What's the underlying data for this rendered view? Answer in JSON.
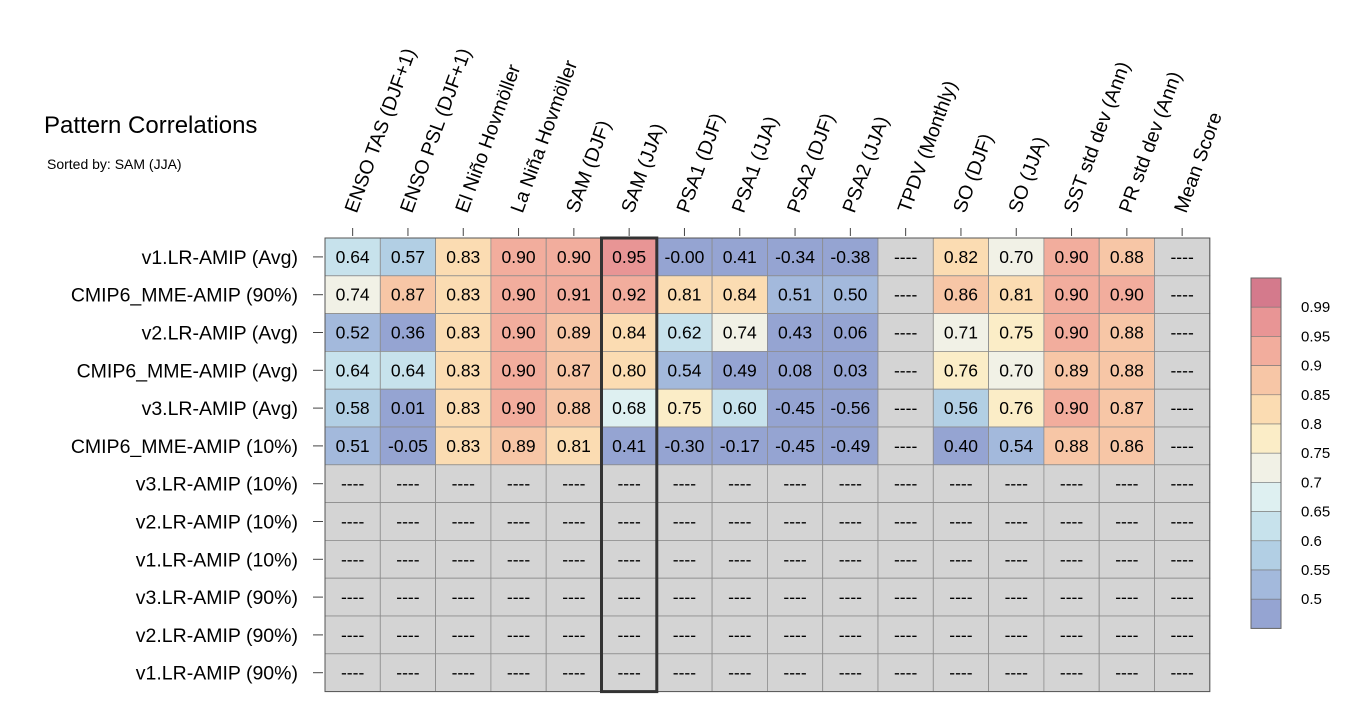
{
  "title": "Pattern Correlations",
  "subtitle": "Sorted by: SAM (JJA)",
  "chart_data": {
    "type": "heatmap",
    "columns": [
      "ENSO TAS (DJF+1)",
      "ENSO PSL (DJF+1)",
      "El Niño Hovmöller",
      "La Niña Hovmöller",
      "SAM (DJF)",
      "SAM (JJA)",
      "PSA1 (DJF)",
      "PSA1 (JJA)",
      "PSA2 (DJF)",
      "PSA2 (JJA)",
      "TPDV (Monthly)",
      "SO (DJF)",
      "SO (JJA)",
      "SST std dev (Ann)",
      "PR std dev (Ann)",
      "Mean Score"
    ],
    "rows": [
      "v1.LR-AMIP (Avg)",
      "CMIP6_MME-AMIP (90%)",
      "v2.LR-AMIP (Avg)",
      "CMIP6_MME-AMIP (Avg)",
      "v3.LR-AMIP (Avg)",
      "CMIP6_MME-AMIP (10%)",
      "v3.LR-AMIP (10%)",
      "v2.LR-AMIP (10%)",
      "v1.LR-AMIP (10%)",
      "v3.LR-AMIP (90%)",
      "v2.LR-AMIP (90%)",
      "v1.LR-AMIP (90%)"
    ],
    "values": [
      [
        "0.64",
        "0.57",
        "0.83",
        "0.90",
        "0.90",
        "0.95",
        "-0.00",
        "0.41",
        "-0.34",
        "-0.38",
        "----",
        "0.82",
        "0.70",
        "0.90",
        "0.88",
        "----"
      ],
      [
        "0.74",
        "0.87",
        "0.83",
        "0.90",
        "0.91",
        "0.92",
        "0.81",
        "0.84",
        "0.51",
        "0.50",
        "----",
        "0.86",
        "0.81",
        "0.90",
        "0.90",
        "----"
      ],
      [
        "0.52",
        "0.36",
        "0.83",
        "0.90",
        "0.89",
        "0.84",
        "0.62",
        "0.74",
        "0.43",
        "0.06",
        "----",
        "0.71",
        "0.75",
        "0.90",
        "0.88",
        "----"
      ],
      [
        "0.64",
        "0.64",
        "0.83",
        "0.90",
        "0.87",
        "0.80",
        "0.54",
        "0.49",
        "0.08",
        "0.03",
        "----",
        "0.76",
        "0.70",
        "0.89",
        "0.88",
        "----"
      ],
      [
        "0.58",
        "0.01",
        "0.83",
        "0.90",
        "0.88",
        "0.68",
        "0.75",
        "0.60",
        "-0.45",
        "-0.56",
        "----",
        "0.56",
        "0.76",
        "0.90",
        "0.87",
        "----"
      ],
      [
        "0.51",
        "-0.05",
        "0.83",
        "0.89",
        "0.81",
        "0.41",
        "-0.30",
        "-0.17",
        "-0.45",
        "-0.49",
        "----",
        "0.40",
        "0.54",
        "0.88",
        "0.86",
        "----"
      ],
      [
        "----",
        "----",
        "----",
        "----",
        "----",
        "----",
        "----",
        "----",
        "----",
        "----",
        "----",
        "----",
        "----",
        "----",
        "----",
        "----"
      ],
      [
        "----",
        "----",
        "----",
        "----",
        "----",
        "----",
        "----",
        "----",
        "----",
        "----",
        "----",
        "----",
        "----",
        "----",
        "----",
        "----"
      ],
      [
        "----",
        "----",
        "----",
        "----",
        "----",
        "----",
        "----",
        "----",
        "----",
        "----",
        "----",
        "----",
        "----",
        "----",
        "----",
        "----"
      ],
      [
        "----",
        "----",
        "----",
        "----",
        "----",
        "----",
        "----",
        "----",
        "----",
        "----",
        "----",
        "----",
        "----",
        "----",
        "----",
        "----"
      ],
      [
        "----",
        "----",
        "----",
        "----",
        "----",
        "----",
        "----",
        "----",
        "----",
        "----",
        "----",
        "----",
        "----",
        "----",
        "----",
        "----"
      ],
      [
        "----",
        "----",
        "----",
        "----",
        "----",
        "----",
        "----",
        "----",
        "----",
        "----",
        "----",
        "----",
        "----",
        "----",
        "----",
        "----"
      ]
    ],
    "highlight_column": "SAM (JJA)",
    "colorbar": {
      "labels": [
        "0.99",
        "0.95",
        "0.9",
        "0.85",
        "0.8",
        "0.75",
        "0.7",
        "0.65",
        "0.6",
        "0.55",
        "0.5"
      ],
      "colors": [
        "#d47a8c",
        "#e89595",
        "#f2ad9d",
        "#f7c6a6",
        "#fbdcb2",
        "#fbedc7",
        "#f1f1e6",
        "#def0f1",
        "#c7e2ec",
        "#b2cfe4",
        "#a3b9dc",
        "#95a4d2"
      ]
    },
    "missing_color": "#d4d4d4"
  }
}
